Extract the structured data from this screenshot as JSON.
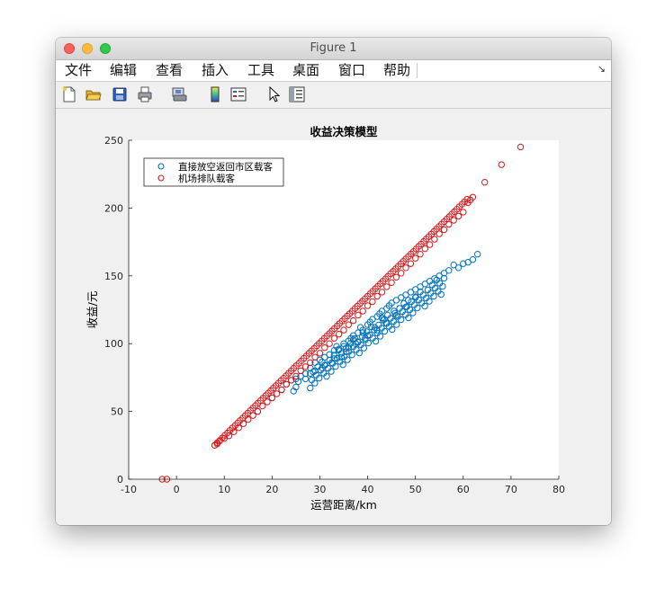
{
  "window": {
    "title": "Figure 1"
  },
  "menu": {
    "items": [
      "文件",
      "编辑",
      "查看",
      "插入",
      "工具",
      "桌面",
      "窗口",
      "帮助"
    ],
    "corner_glyph": "↘"
  },
  "toolbar": {
    "icons": [
      "new-figure-icon",
      "open-file-icon",
      "save-icon",
      "print-icon",
      "print-preview-icon",
      "colorbar-icon",
      "legend-icon",
      "pointer-icon",
      "property-inspector-icon"
    ]
  },
  "chart_data": {
    "type": "scatter",
    "title": "收益决策模型",
    "xlabel": "运营距离/km",
    "ylabel": "收益/元",
    "xlim": [
      -10,
      80
    ],
    "ylim": [
      0,
      250
    ],
    "xticks": [
      -10,
      0,
      10,
      20,
      30,
      40,
      50,
      60,
      70,
      80
    ],
    "yticks": [
      0,
      50,
      100,
      150,
      200,
      250
    ],
    "grid": false,
    "legend_position": "top-left",
    "marker": "open-circle",
    "series": [
      {
        "name": "直接放空返回市区载客",
        "color": "#0072BD",
        "trend": {
          "x_start": 17,
          "x_end": 63,
          "y_start": 50,
          "y_end": 166
        },
        "points": [
          [
            17,
            50
          ],
          [
            20,
            60
          ],
          [
            22,
            66
          ],
          [
            23,
            70
          ],
          [
            24,
            73
          ],
          [
            24.5,
            65
          ],
          [
            25,
            68
          ],
          [
            25.5,
            72
          ],
          [
            26,
            76
          ],
          [
            27,
            78
          ],
          [
            28,
            82
          ],
          [
            29,
            86
          ],
          [
            30,
            88
          ],
          [
            30.5,
            82
          ],
          [
            31,
            90
          ],
          [
            32,
            92
          ],
          [
            32.5,
            86
          ],
          [
            33,
            95
          ],
          [
            33.5,
            98
          ],
          [
            34,
            96
          ],
          [
            34.5,
            90
          ],
          [
            35,
            100
          ],
          [
            35.5,
            94
          ],
          [
            36,
            102
          ],
          [
            36.5,
            104
          ],
          [
            37,
            106
          ],
          [
            37.5,
            100
          ],
          [
            38,
            108
          ],
          [
            38.5,
            112
          ],
          [
            39,
            110
          ],
          [
            39.5,
            104
          ],
          [
            40,
            114
          ],
          [
            40.5,
            116
          ],
          [
            41,
            118
          ],
          [
            41.5,
            112
          ],
          [
            42,
            120
          ],
          [
            42.5,
            122
          ],
          [
            43,
            124
          ],
          [
            43.5,
            118
          ],
          [
            44,
            126
          ],
          [
            44.5,
            128
          ],
          [
            45,
            130
          ],
          [
            45.5,
            124
          ],
          [
            46,
            132
          ],
          [
            47,
            134
          ],
          [
            48,
            136
          ],
          [
            48.5,
            132
          ],
          [
            49,
            138
          ],
          [
            50,
            140
          ],
          [
            51,
            142
          ],
          [
            52,
            144
          ],
          [
            53,
            146
          ],
          [
            54,
            148
          ],
          [
            55,
            150
          ],
          [
            56,
            152
          ],
          [
            57,
            154
          ],
          [
            58,
            158
          ],
          [
            59,
            156
          ],
          [
            60,
            159
          ],
          [
            61,
            160
          ],
          [
            62,
            162
          ],
          [
            63,
            166
          ],
          [
            29,
            80
          ],
          [
            31,
            84
          ],
          [
            33,
            89
          ],
          [
            36,
            97
          ],
          [
            38,
            101
          ],
          [
            40,
            106
          ],
          [
            42,
            110
          ],
          [
            44,
            115
          ],
          [
            46,
            121
          ],
          [
            48,
            127
          ],
          [
            50,
            134
          ],
          [
            27,
            74
          ],
          [
            25,
            74
          ],
          [
            28,
            78
          ],
          [
            35,
            98
          ],
          [
            37,
            103
          ],
          [
            39,
            108
          ],
          [
            43,
            119
          ]
        ]
      },
      {
        "name": "机场排队载客",
        "color": "#D7191C",
        "trend": {
          "x_start": 8,
          "x_end": 72,
          "y_start": 25,
          "y_end": 245
        },
        "points": [
          [
            -3,
            0
          ],
          [
            -2,
            0
          ],
          [
            8,
            25
          ],
          [
            8.5,
            26
          ],
          [
            9,
            28
          ],
          [
            10,
            30
          ],
          [
            11,
            32
          ],
          [
            12,
            35
          ],
          [
            13,
            38
          ],
          [
            14,
            41
          ],
          [
            15,
            44
          ],
          [
            16,
            47
          ],
          [
            17,
            50
          ],
          [
            18,
            54
          ],
          [
            19,
            57
          ],
          [
            20,
            60
          ],
          [
            21,
            63
          ],
          [
            22,
            66
          ],
          [
            23,
            70
          ],
          [
            24,
            73
          ],
          [
            25,
            76
          ],
          [
            26,
            80
          ],
          [
            27,
            83
          ],
          [
            28,
            86
          ],
          [
            29,
            90
          ],
          [
            30,
            93
          ],
          [
            31,
            97
          ],
          [
            32,
            100
          ],
          [
            33,
            104
          ],
          [
            34,
            107
          ],
          [
            35,
            110
          ],
          [
            36,
            114
          ],
          [
            37,
            117
          ],
          [
            38,
            121
          ],
          [
            39,
            124
          ],
          [
            40,
            128
          ],
          [
            41,
            131
          ],
          [
            42,
            135
          ],
          [
            43,
            138
          ],
          [
            44,
            142
          ],
          [
            45,
            145
          ],
          [
            46,
            149
          ],
          [
            47,
            152
          ],
          [
            48,
            156
          ],
          [
            49,
            159
          ],
          [
            50,
            163
          ],
          [
            51,
            166
          ],
          [
            52,
            170
          ],
          [
            53,
            173
          ],
          [
            54,
            177
          ],
          [
            55,
            181
          ],
          [
            56,
            184
          ],
          [
            57,
            188
          ],
          [
            58,
            191
          ],
          [
            59,
            194
          ],
          [
            60,
            197
          ],
          [
            61,
            204
          ],
          [
            61.5,
            206
          ],
          [
            62,
            208
          ],
          [
            64.5,
            219
          ],
          [
            68,
            232
          ],
          [
            72,
            245
          ]
        ]
      }
    ]
  }
}
